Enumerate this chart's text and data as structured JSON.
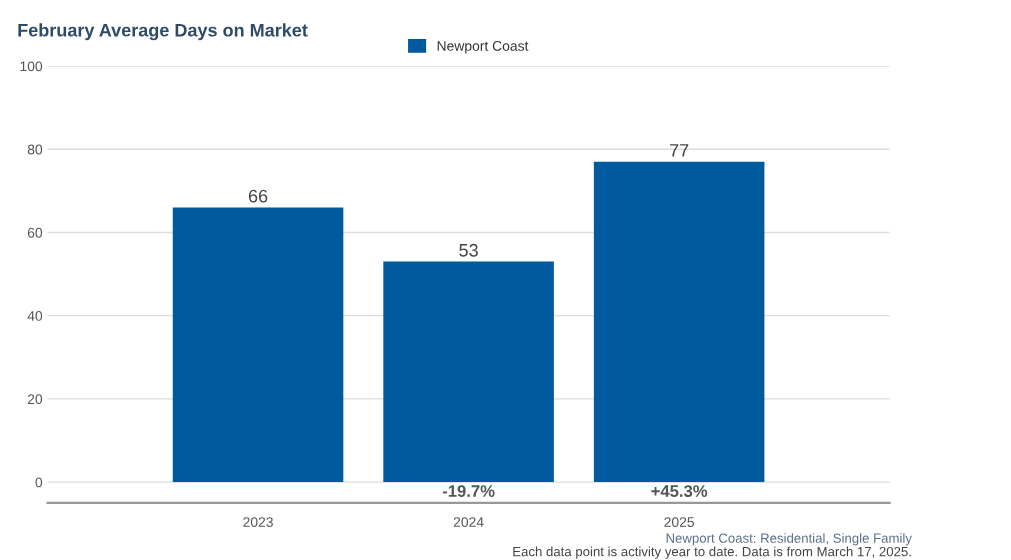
{
  "chart_data": {
    "type": "bar",
    "title": "February Average Days on Market",
    "categories": [
      "2023",
      "2024",
      "2025"
    ],
    "series": [
      {
        "name": "Newport Coast",
        "color": "#005a9e",
        "values": [
          66,
          53,
          77
        ]
      }
    ],
    "data_labels": true,
    "ylim": [
      -5,
      100
    ],
    "yticks": [
      0,
      20,
      40,
      60,
      80,
      100
    ],
    "grid": "y",
    "legend": "top",
    "annotations": [
      "-19.7%",
      "+45.3%",
      "Newport Coast: Residential, Single Family",
      "Each data point is activity year to date. Data is from March 17, 2025."
    ]
  }
}
